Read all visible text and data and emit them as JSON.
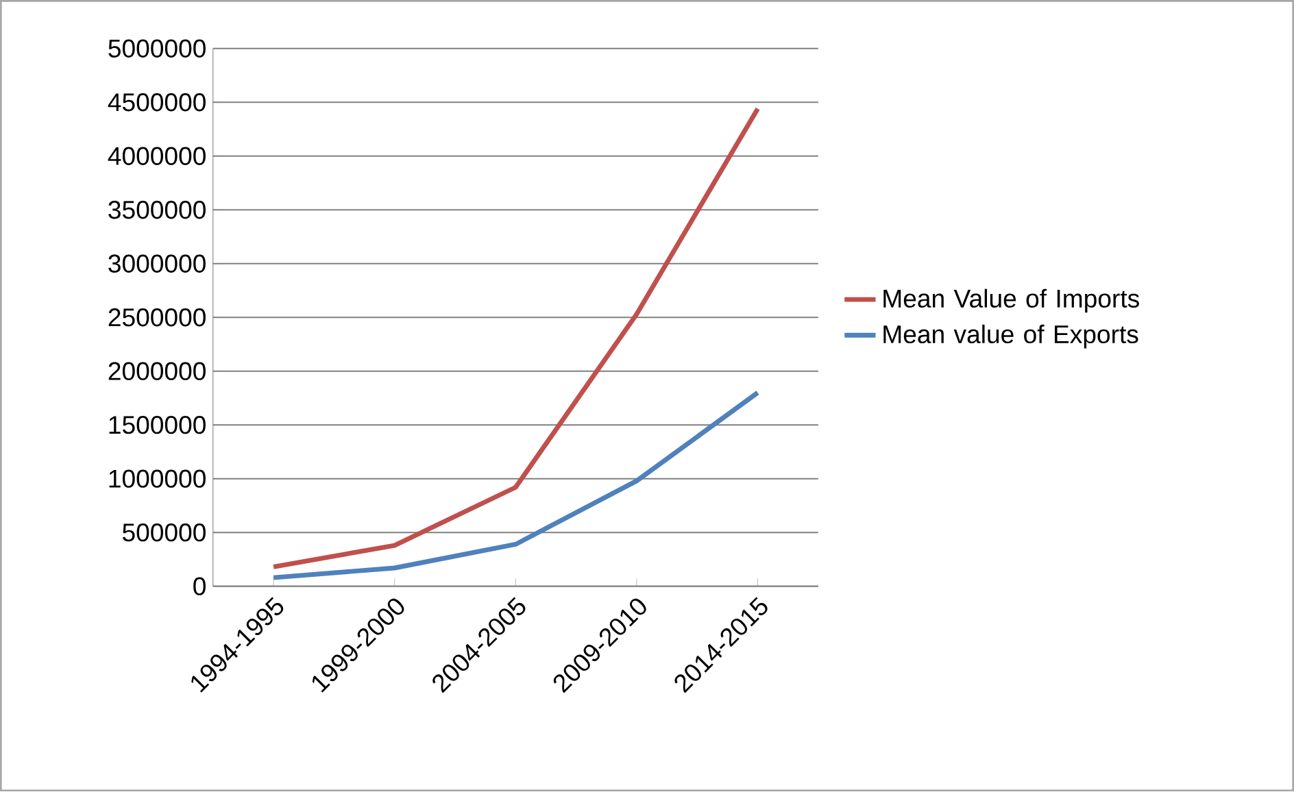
{
  "chart_data": {
    "type": "line",
    "categories": [
      "1994-1995",
      "1999-2000",
      "2004-2005",
      "2009-2010",
      "2014-2015"
    ],
    "series": [
      {
        "name": "Mean Value of Imports",
        "color": "#c0504d",
        "values": [
          180000,
          380000,
          920000,
          2530000,
          4440000
        ]
      },
      {
        "name": "Mean value of Exports",
        "color": "#4f81bd",
        "values": [
          80000,
          170000,
          390000,
          980000,
          1800000
        ]
      }
    ],
    "ylim": [
      0,
      5000000
    ],
    "yticks": [
      0,
      500000,
      1000000,
      1500000,
      2000000,
      2500000,
      3000000,
      3500000,
      4000000,
      4500000,
      5000000
    ],
    "grid": "y",
    "legend": "right"
  }
}
